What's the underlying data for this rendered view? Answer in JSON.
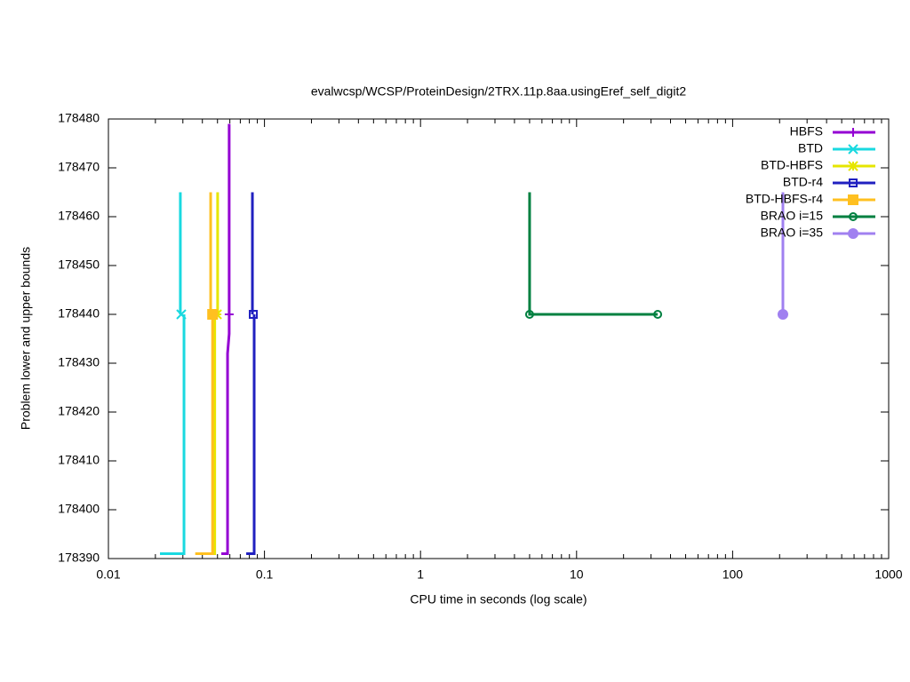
{
  "chart_data": {
    "type": "line",
    "title": "evalwcsp/WCSP/ProteinDesign/2TRX.11p.8aa.usingEref_self_digit2",
    "x_label": "CPU time in seconds (log scale)",
    "y_label": "Problem lower and upper bounds",
    "xlog": true,
    "xlim": [
      0.01,
      1000
    ],
    "xticks": [
      0.01,
      0.1,
      1,
      10,
      100,
      1000
    ],
    "ylim": [
      178390,
      178480
    ],
    "yticks": [
      178390,
      178400,
      178410,
      178420,
      178430,
      178440,
      178450,
      178460,
      178470,
      178480
    ],
    "legend": "top-right",
    "series": [
      {
        "name": "HBFS",
        "color": "#9400d3",
        "point": "plus",
        "x": [
          0.0529,
          0.058,
          0.058,
          0.0594,
          0.0594,
          null,
          0.0594,
          0.0594
        ],
        "values": [
          178391,
          178391,
          178432,
          178436,
          178440,
          null,
          178479,
          178440
        ],
        "marker_x": [
          0.0594
        ],
        "marker_values": [
          178440
        ]
      },
      {
        "name": "BTD",
        "color": "#19d9e0",
        "point": "cross",
        "x": [
          0.0214,
          0.0305,
          0.0305,
          null,
          0.0289,
          0.0289
        ],
        "values": [
          178391,
          178391,
          178440,
          null,
          178465,
          178440
        ],
        "marker_x": [
          0.0293
        ],
        "marker_values": [
          178440
        ]
      },
      {
        "name": "BTD-HBFS",
        "color": "#e6e600",
        "point": "star",
        "x": [
          0.0371,
          0.048,
          0.048,
          null,
          0.0501,
          0.0501
        ],
        "values": [
          178391,
          178391,
          178440,
          null,
          178465,
          178440
        ],
        "marker_x": [
          0.0496
        ],
        "marker_values": [
          178440
        ]
      },
      {
        "name": "BTD-r4",
        "color": "#2020c0",
        "point": "square",
        "x": [
          0.0764,
          0.0859,
          0.0859,
          null,
          0.0837,
          0.0837
        ],
        "values": [
          178391,
          178391,
          178440,
          null,
          178465,
          178440
        ],
        "marker_x": [
          0.0848
        ],
        "marker_values": [
          178440
        ]
      },
      {
        "name": "BTD-HBFS-r4",
        "color": "#ffc020",
        "point": "square-filled",
        "x": [
          0.036,
          0.0465,
          0.0465,
          null,
          0.0452,
          0.0452
        ],
        "values": [
          178391,
          178391,
          178440,
          null,
          178465,
          178440
        ],
        "marker_x": [
          0.0465
        ],
        "marker_values": [
          178440
        ]
      },
      {
        "name": "BRAO i=15",
        "color": "#008040",
        "point": "circle",
        "x": [
          5.0,
          5.0,
          33.1
        ],
        "values": [
          178465,
          178440,
          178440
        ],
        "marker_x": [
          5.0,
          33.1
        ],
        "marker_values": [
          178440,
          178440
        ]
      },
      {
        "name": "BRAO i=35",
        "color": "#a080f0",
        "point": "circle-filled",
        "x": [
          210,
          210
        ],
        "values": [
          178465,
          178440
        ],
        "marker_x": [
          210
        ],
        "marker_values": [
          178440
        ]
      }
    ]
  }
}
